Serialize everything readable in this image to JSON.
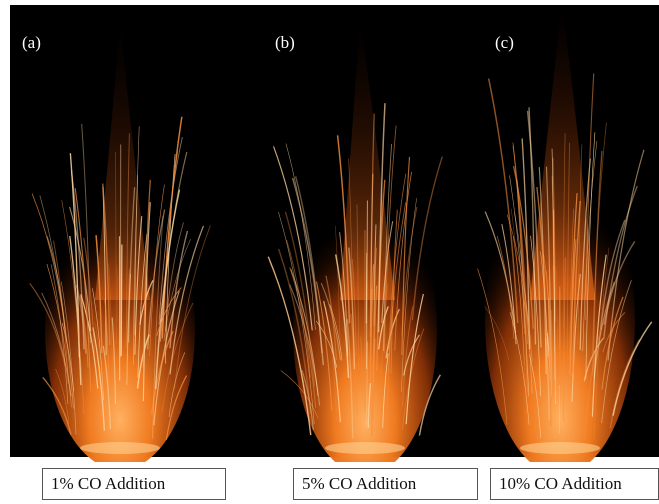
{
  "panels": [
    {
      "label": "(a)",
      "caption": "1% CO Addition"
    },
    {
      "label": "(b)",
      "caption": "5% CO Addition"
    },
    {
      "label": "(c)",
      "caption": "10% CO Addition"
    }
  ]
}
